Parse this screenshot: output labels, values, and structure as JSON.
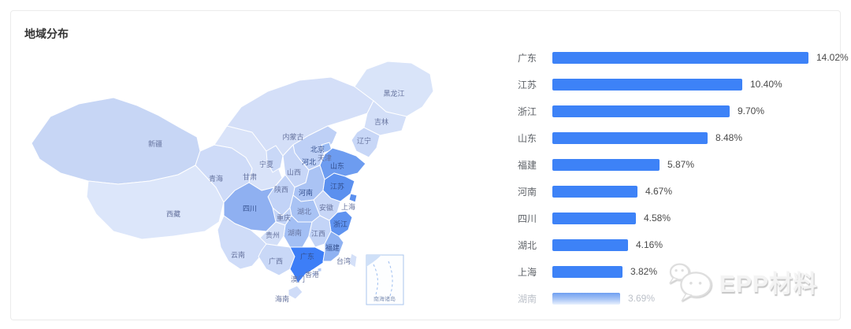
{
  "page": {
    "title": "地域分布"
  },
  "chart_data": {
    "type": "bar",
    "orientation": "horizontal",
    "title": "地域分布",
    "categories": [
      "广东",
      "江苏",
      "浙江",
      "山东",
      "福建",
      "河南",
      "四川",
      "湖北",
      "上海",
      "湖南"
    ],
    "values": [
      14.02,
      10.4,
      9.7,
      8.48,
      5.87,
      4.67,
      4.58,
      4.16,
      3.82,
      3.69
    ],
    "value_labels": [
      "14.02%",
      "10.40%",
      "9.70%",
      "8.48%",
      "5.87%",
      "4.67%",
      "4.58%",
      "4.16%",
      "3.82%",
      "3.69%"
    ],
    "xlim": [
      0,
      14.02
    ],
    "bar_color": "#3d82f7",
    "last_row_faded": true,
    "grid": false,
    "legend": false
  },
  "map": {
    "type": "china-choropleth",
    "inset_label": "南海诸岛",
    "provinces": [
      {
        "name": "新疆",
        "color": "#c7d6f5"
      },
      {
        "name": "西藏",
        "color": "#dce6fa"
      },
      {
        "name": "青海",
        "color": "#cedbf8"
      },
      {
        "name": "甘肃",
        "color": "#d9e3f9"
      },
      {
        "name": "宁夏",
        "color": "#c9d8f7"
      },
      {
        "name": "内蒙古",
        "color": "#d4dff8"
      },
      {
        "name": "黑龙江",
        "color": "#d9e4f9"
      },
      {
        "name": "吉林",
        "color": "#d3dff8"
      },
      {
        "name": "辽宁",
        "color": "#c8d7f7"
      },
      {
        "name": "北京",
        "color": "#9bbcf4"
      },
      {
        "name": "天津",
        "color": "#aec7f5"
      },
      {
        "name": "河北",
        "color": "#bed0f6"
      },
      {
        "name": "山西",
        "color": "#c7d6f7"
      },
      {
        "name": "陕西",
        "color": "#c2d3f7"
      },
      {
        "name": "河南",
        "color": "#aac3f4"
      },
      {
        "name": "山东",
        "color": "#6d9cf0"
      },
      {
        "name": "江苏",
        "color": "#5b90ef"
      },
      {
        "name": "安徽",
        "color": "#c7d6f7"
      },
      {
        "name": "上海",
        "color": "#5b90ef"
      },
      {
        "name": "浙江",
        "color": "#5f93f0"
      },
      {
        "name": "湖北",
        "color": "#a9c3f4"
      },
      {
        "name": "重庆",
        "color": "#c3d4f7"
      },
      {
        "name": "四川",
        "color": "#8fb0f1"
      },
      {
        "name": "湖南",
        "color": "#a3bff4"
      },
      {
        "name": "江西",
        "color": "#c3d4f7"
      },
      {
        "name": "贵州",
        "color": "#d3dff8"
      },
      {
        "name": "云南",
        "color": "#cfdcf8"
      },
      {
        "name": "广西",
        "color": "#c9d8f7"
      },
      {
        "name": "广东",
        "color": "#3d7ef7"
      },
      {
        "name": "福建",
        "color": "#8fb2f2"
      },
      {
        "name": "台湾",
        "color": "#d4e0f8"
      },
      {
        "name": "香港",
        "color": "#b3c9f5"
      },
      {
        "name": "澳门",
        "color": "#c9d8f7"
      },
      {
        "name": "海南",
        "color": "#cfdcf8"
      }
    ]
  },
  "watermark": {
    "text": "EPP材料",
    "icon": "wechat-icon"
  }
}
